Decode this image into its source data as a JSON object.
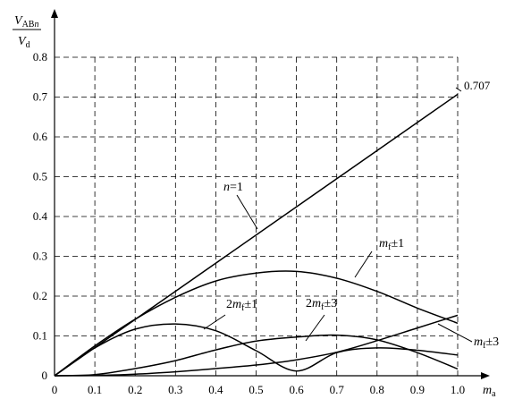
{
  "chart_data": {
    "type": "line",
    "x_ticks": [
      "0",
      "0.1",
      "0.2",
      "0.3",
      "0.4",
      "0.5",
      "0.6",
      "0.7",
      "0.8",
      "0.9",
      "1.0"
    ],
    "y_ticks": [
      "0",
      "0.1",
      "0.2",
      "0.3",
      "0.4",
      "0.5",
      "0.6",
      "0.7",
      "0.8"
    ],
    "xlim": [
      0,
      1.0
    ],
    "ylim": [
      0,
      0.8
    ],
    "grid": true,
    "grid_style": "dashed",
    "ylabel": {
      "num_main": "V",
      "num_sub": "AB",
      "num_sub_italic": "n",
      "den_main": "V",
      "den_sub": "d"
    },
    "xlabel": {
      "main": "m",
      "sub": "a"
    },
    "endpoint_label": "0.707",
    "series": [
      {
        "name": "n=1",
        "label_parts": {
          "main": "n",
          "tail": "=1"
        },
        "x": [
          0,
          1.0
        ],
        "y": [
          0,
          0.707
        ]
      },
      {
        "name": "mf±1",
        "label_parts": {
          "pre": "",
          "main": "m",
          "sub": "f",
          "tail": "±1"
        },
        "x": [
          0,
          0.1,
          0.2,
          0.3,
          0.4,
          0.5,
          0.6,
          0.7,
          0.8,
          0.9,
          1.0
        ],
        "y": [
          0,
          0.075,
          0.142,
          0.197,
          0.238,
          0.258,
          0.262,
          0.245,
          0.212,
          0.17,
          0.132
        ]
      },
      {
        "name": "2mf±1",
        "label_parts": {
          "pre": "2",
          "main": "m",
          "sub": "f",
          "tail": "±1"
        },
        "x": [
          0,
          0.1,
          0.2,
          0.3,
          0.4,
          0.5,
          0.6,
          0.7,
          0.8,
          0.9,
          1.0
        ],
        "y": [
          0,
          0.07,
          0.117,
          0.13,
          0.113,
          0.063,
          0.012,
          0.058,
          0.07,
          0.064,
          0.052
        ]
      },
      {
        "name": "2mf±3",
        "label_parts": {
          "pre": "2",
          "main": "m",
          "sub": "f",
          "tail": "±3"
        },
        "x": [
          0,
          0.1,
          0.2,
          0.3,
          0.4,
          0.5,
          0.6,
          0.7,
          0.8,
          0.9,
          1.0
        ],
        "y": [
          0,
          0.003,
          0.018,
          0.038,
          0.065,
          0.087,
          0.097,
          0.102,
          0.09,
          0.058,
          0.017
        ]
      },
      {
        "name": "mf±3",
        "label_parts": {
          "pre": "",
          "main": "m",
          "sub": "f",
          "tail": "±3"
        },
        "x": [
          0,
          0.1,
          0.2,
          0.3,
          0.4,
          0.5,
          0.6,
          0.7,
          0.8,
          0.9,
          1.0
        ],
        "y": [
          0,
          0.001,
          0.004,
          0.01,
          0.018,
          0.027,
          0.04,
          0.059,
          0.088,
          0.12,
          0.152
        ]
      }
    ]
  }
}
